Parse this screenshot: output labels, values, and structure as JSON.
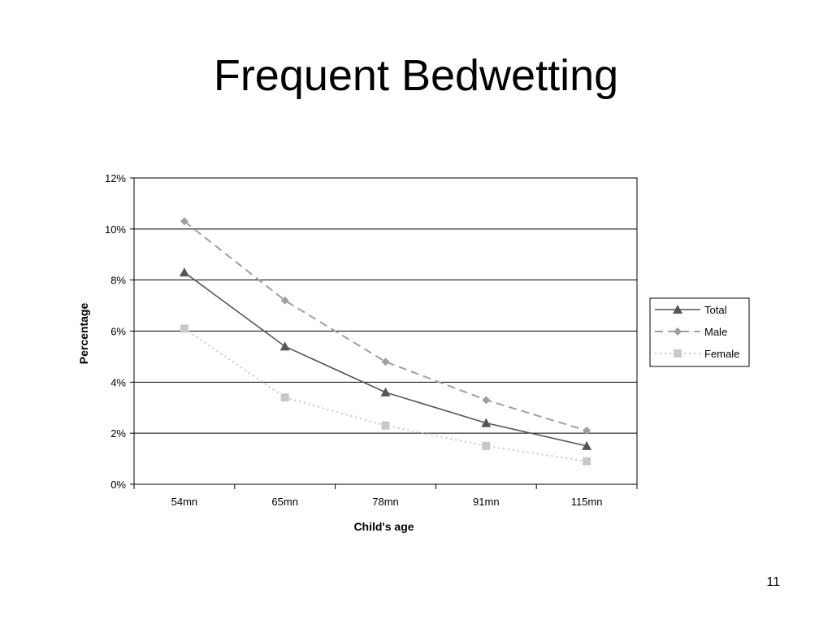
{
  "slide": {
    "title": "Frequent Bedwetting",
    "number": "11"
  },
  "chart_data": {
    "type": "line",
    "categories": [
      "54mn",
      "65mn",
      "78mn",
      "91mn",
      "115mn"
    ],
    "xlabel": "Child's age",
    "ylabel": "Percentage",
    "ylim": [
      0,
      12
    ],
    "yticks": [
      "0%",
      "2%",
      "4%",
      "6%",
      "8%",
      "10%",
      "12%"
    ],
    "grid": "horizontal",
    "legend_position": "right",
    "series": [
      {
        "name": "Total",
        "values": [
          8.3,
          5.4,
          3.6,
          2.4,
          1.5
        ],
        "color": "#555555",
        "marker": "triangle",
        "style": "solid"
      },
      {
        "name": "Male",
        "values": [
          10.3,
          7.2,
          4.8,
          3.3,
          2.1
        ],
        "color": "#a0a0a0",
        "marker": "diamond",
        "style": "dashed"
      },
      {
        "name": "Female",
        "values": [
          6.1,
          3.4,
          2.3,
          1.5,
          0.9
        ],
        "color": "#c8c8c8",
        "marker": "square",
        "style": "dotted"
      }
    ]
  }
}
